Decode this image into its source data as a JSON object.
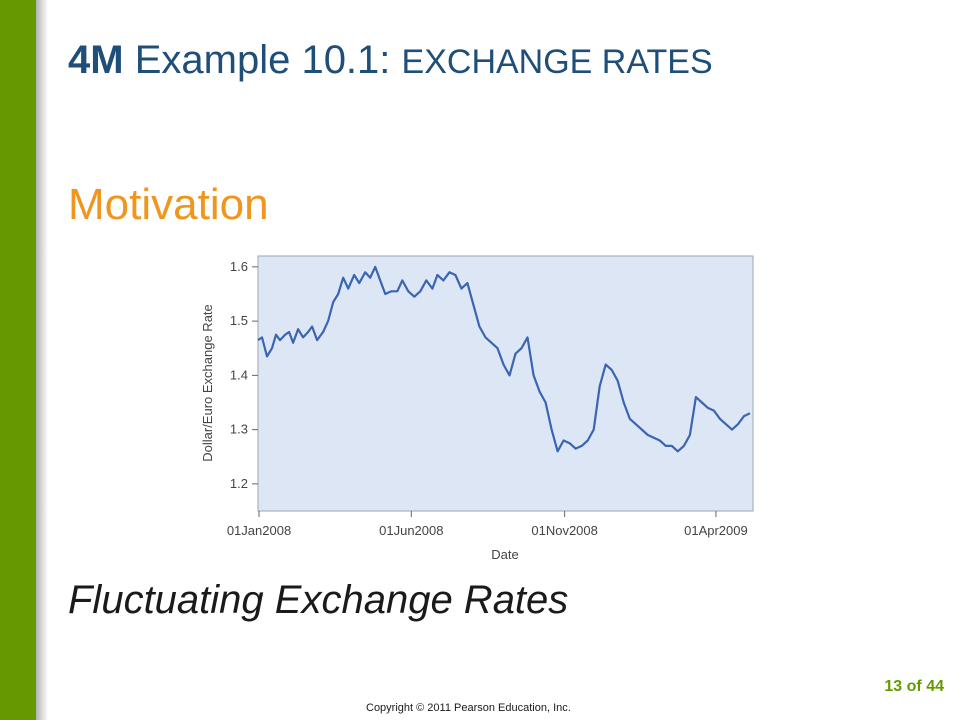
{
  "slide": {
    "title_num": "4M",
    "title_main": "Example 10.1:",
    "title_caps": "EXCHANGE RATES",
    "subtitle": "Motivation",
    "caption": "Fluctuating Exchange Rates",
    "page": "13 of 44",
    "copyright": "Copyright © 2011 Pearson Education, Inc.",
    "colors": {
      "sidebar": "#669900",
      "title": "#1f4e79",
      "subtitle": "#f0961e",
      "plot_bg": "#dde6f5",
      "line": "#3a65b0"
    }
  },
  "chart_data": {
    "type": "line",
    "title": "",
    "xlabel": "Date",
    "ylabel": "Dollar/Euro Exchange Rate",
    "ylim": [
      1.15,
      1.62
    ],
    "yticks": [
      1.2,
      1.3,
      1.4,
      1.5,
      1.6
    ],
    "ytick_labels": [
      "1.2",
      "1.3",
      "1.4",
      "1.5",
      "1.6"
    ],
    "xticks": [
      "2008-01-01",
      "2008-06-01",
      "2008-11-01",
      "2009-04-01"
    ],
    "xtick_labels": [
      "01Jan2008",
      "01Jun2008",
      "01Nov2008",
      "01Apr2009"
    ],
    "xlim": [
      "2007-12-31",
      "2009-05-08"
    ],
    "grid": false,
    "series": [
      {
        "name": "",
        "x": [
          "2007-12-31",
          "2008-01-04",
          "2008-01-09",
          "2008-01-14",
          "2008-01-18",
          "2008-01-22",
          "2008-01-27",
          "2008-01-31",
          "2008-02-04",
          "2008-02-09",
          "2008-02-14",
          "2008-02-19",
          "2008-02-23",
          "2008-02-28",
          "2008-03-05",
          "2008-03-10",
          "2008-03-15",
          "2008-03-20",
          "2008-03-25",
          "2008-03-30",
          "2008-04-05",
          "2008-04-10",
          "2008-04-16",
          "2008-04-21",
          "2008-04-26",
          "2008-05-01",
          "2008-05-06",
          "2008-05-12",
          "2008-05-18",
          "2008-05-23",
          "2008-05-29",
          "2008-06-04",
          "2008-06-10",
          "2008-06-16",
          "2008-06-22",
          "2008-06-27",
          "2008-07-03",
          "2008-07-09",
          "2008-07-15",
          "2008-07-21",
          "2008-07-27",
          "2008-08-02",
          "2008-08-08",
          "2008-08-14",
          "2008-08-20",
          "2008-08-26",
          "2008-09-01",
          "2008-09-07",
          "2008-09-13",
          "2008-09-19",
          "2008-09-25",
          "2008-10-01",
          "2008-10-07",
          "2008-10-13",
          "2008-10-19",
          "2008-10-25",
          "2008-10-31",
          "2008-11-06",
          "2008-11-12",
          "2008-11-18",
          "2008-11-24",
          "2008-11-30",
          "2008-12-06",
          "2008-12-12",
          "2008-12-18",
          "2008-12-24",
          "2008-12-30",
          "2009-01-05",
          "2009-01-11",
          "2009-01-17",
          "2009-01-23",
          "2009-01-29",
          "2009-02-04",
          "2009-02-10",
          "2009-02-16",
          "2009-02-22",
          "2009-02-28",
          "2009-03-06",
          "2009-03-12",
          "2009-03-18",
          "2009-03-24",
          "2009-03-30",
          "2009-04-05",
          "2009-04-11",
          "2009-04-17",
          "2009-04-23",
          "2009-04-29",
          "2009-05-05"
        ],
        "values": [
          1.465,
          1.47,
          1.435,
          1.45,
          1.475,
          1.465,
          1.475,
          1.48,
          1.46,
          1.485,
          1.47,
          1.48,
          1.49,
          1.465,
          1.48,
          1.5,
          1.535,
          1.55,
          1.58,
          1.56,
          1.585,
          1.57,
          1.59,
          1.58,
          1.6,
          1.575,
          1.55,
          1.555,
          1.555,
          1.575,
          1.555,
          1.545,
          1.555,
          1.575,
          1.56,
          1.585,
          1.575,
          1.59,
          1.585,
          1.56,
          1.57,
          1.53,
          1.49,
          1.47,
          1.46,
          1.45,
          1.42,
          1.4,
          1.44,
          1.45,
          1.47,
          1.4,
          1.37,
          1.35,
          1.3,
          1.26,
          1.28,
          1.275,
          1.265,
          1.27,
          1.28,
          1.3,
          1.38,
          1.42,
          1.41,
          1.39,
          1.35,
          1.32,
          1.31,
          1.3,
          1.29,
          1.285,
          1.28,
          1.27,
          1.27,
          1.26,
          1.27,
          1.29,
          1.36,
          1.35,
          1.34,
          1.335,
          1.32,
          1.31,
          1.3,
          1.31,
          1.325,
          1.33
        ]
      }
    ]
  }
}
